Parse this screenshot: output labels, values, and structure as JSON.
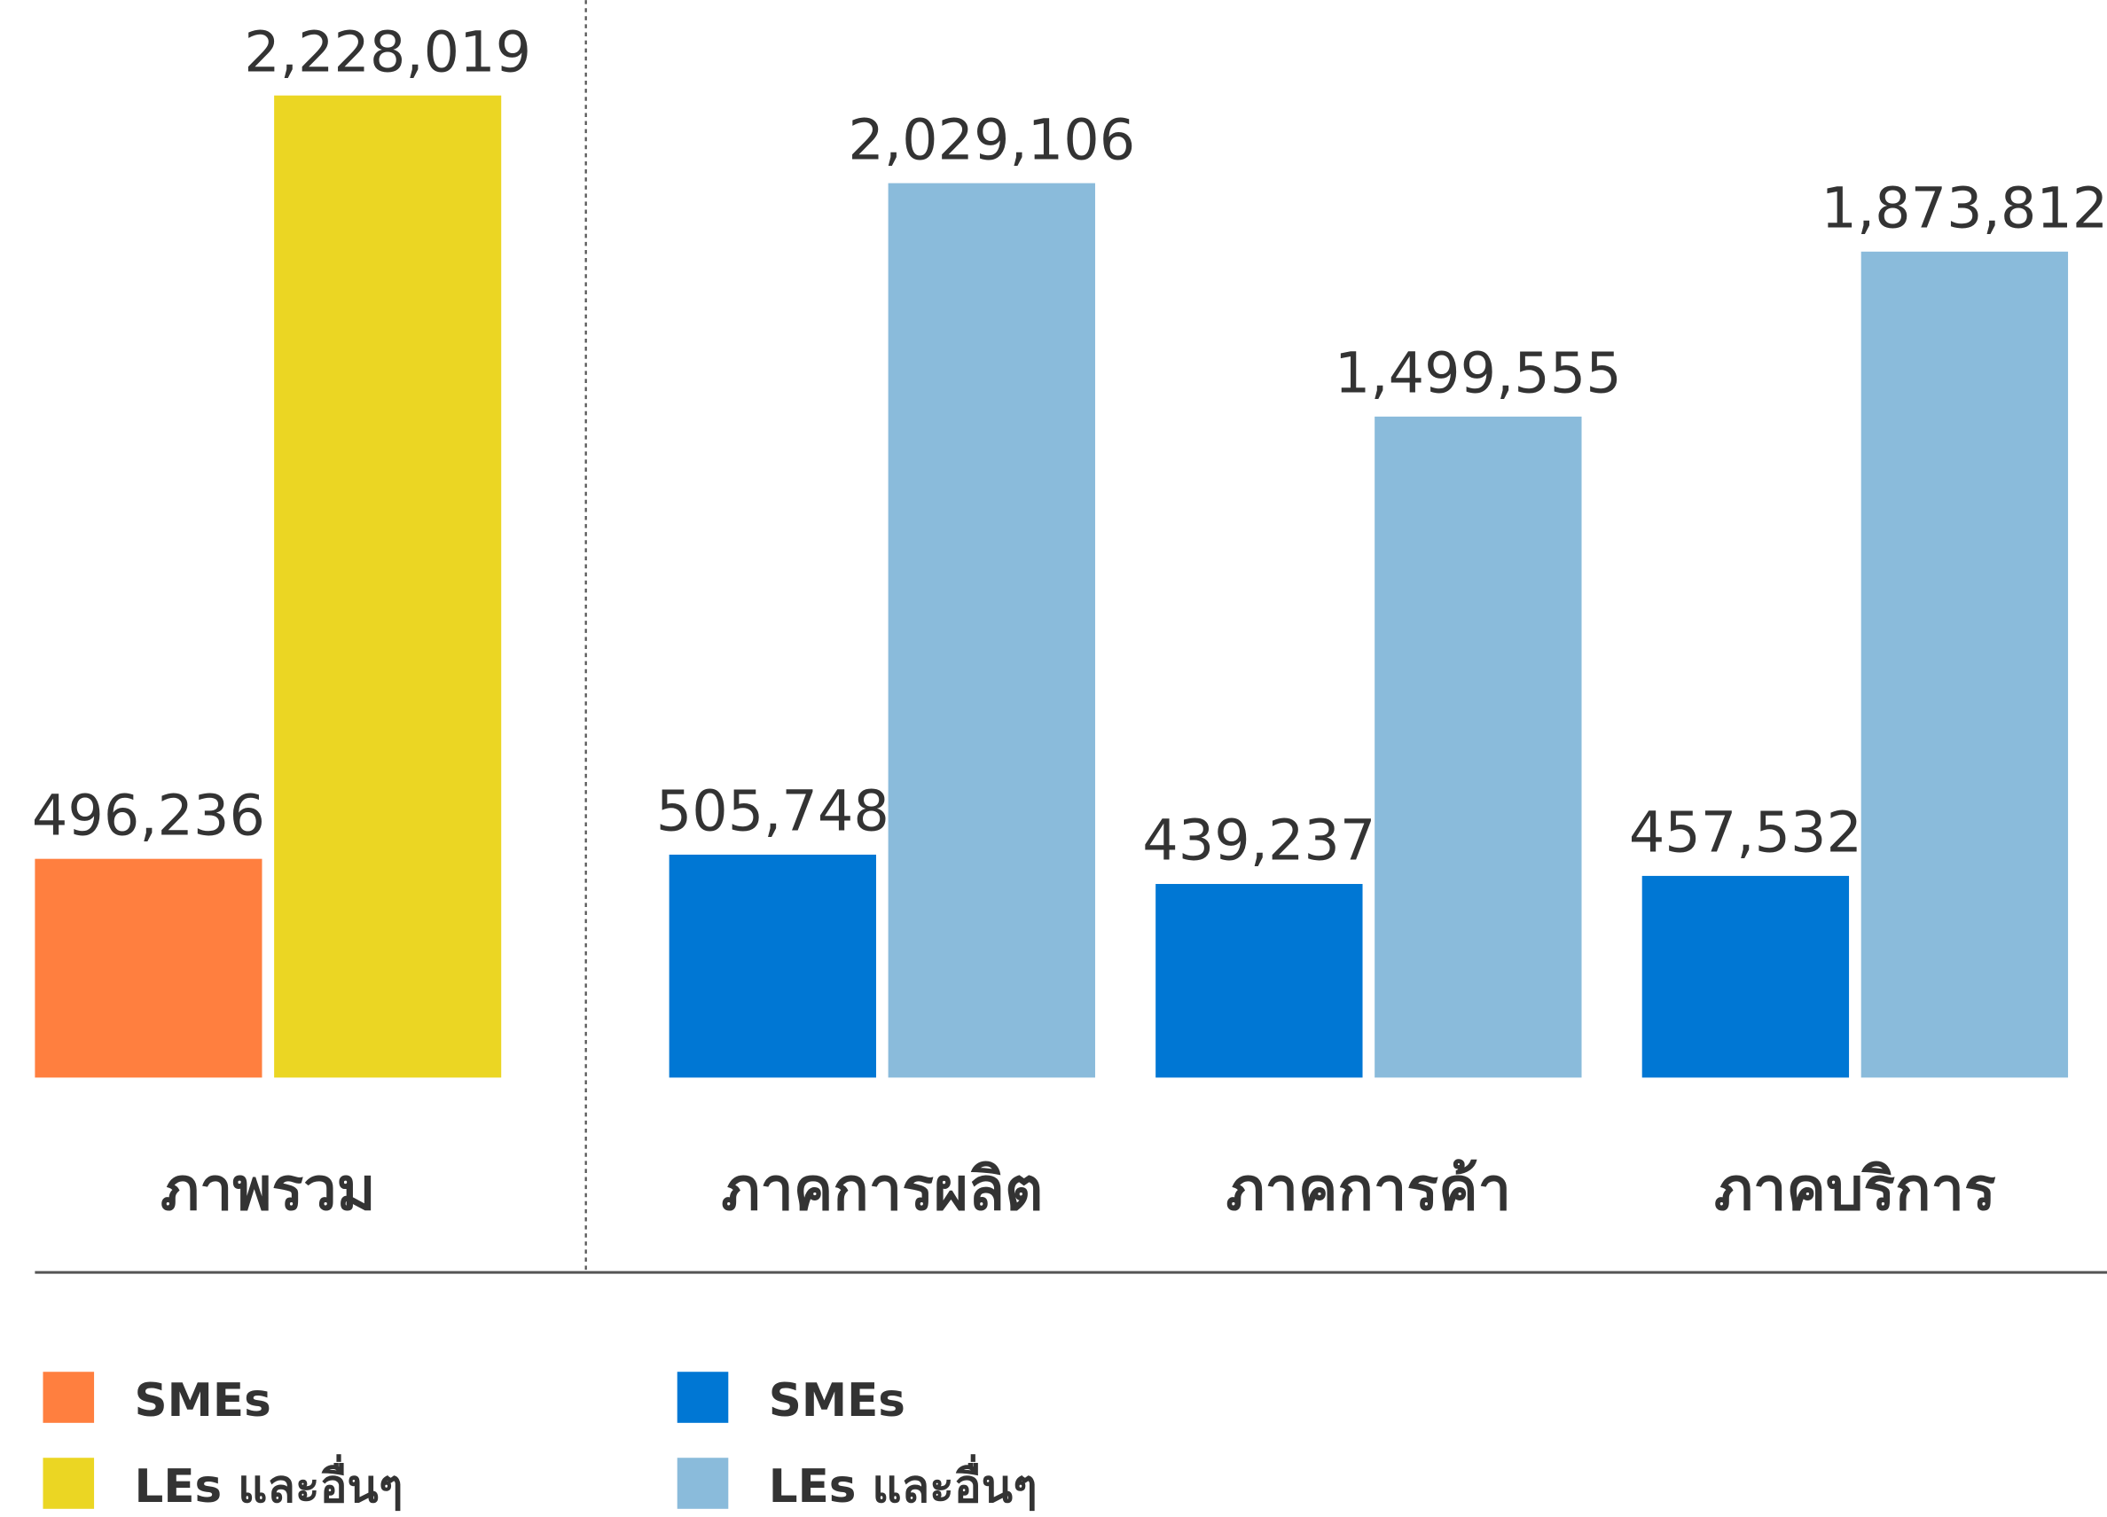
{
  "chart_data": [
    {
      "type": "bar",
      "categories": [
        "ภาพรวม"
      ],
      "series": [
        {
          "name": "SMEs",
          "color": "#ff7f3f",
          "values": [
            496236
          ],
          "value_labels": [
            "496,236"
          ]
        },
        {
          "name": "LEs และอื่นๆ",
          "color": "#ebd623",
          "values": [
            2228019
          ],
          "value_labels": [
            "2,228,019"
          ]
        }
      ]
    },
    {
      "type": "bar",
      "categories": [
        "ภาคการผลิต",
        "ภาคการค้า",
        "ภาคบริการ"
      ],
      "series": [
        {
          "name": "SMEs",
          "color": "#0077d4",
          "values": [
            505748,
            439237,
            457532
          ],
          "value_labels": [
            "505,748",
            "439,237",
            "457,532"
          ]
        },
        {
          "name": "LEs และอื่นๆ",
          "color": "#8abbdb",
          "values": [
            2029106,
            1499555,
            1873812
          ],
          "value_labels": [
            "2,029,106",
            "1,499,555",
            "1,873,812"
          ]
        }
      ]
    }
  ]
}
